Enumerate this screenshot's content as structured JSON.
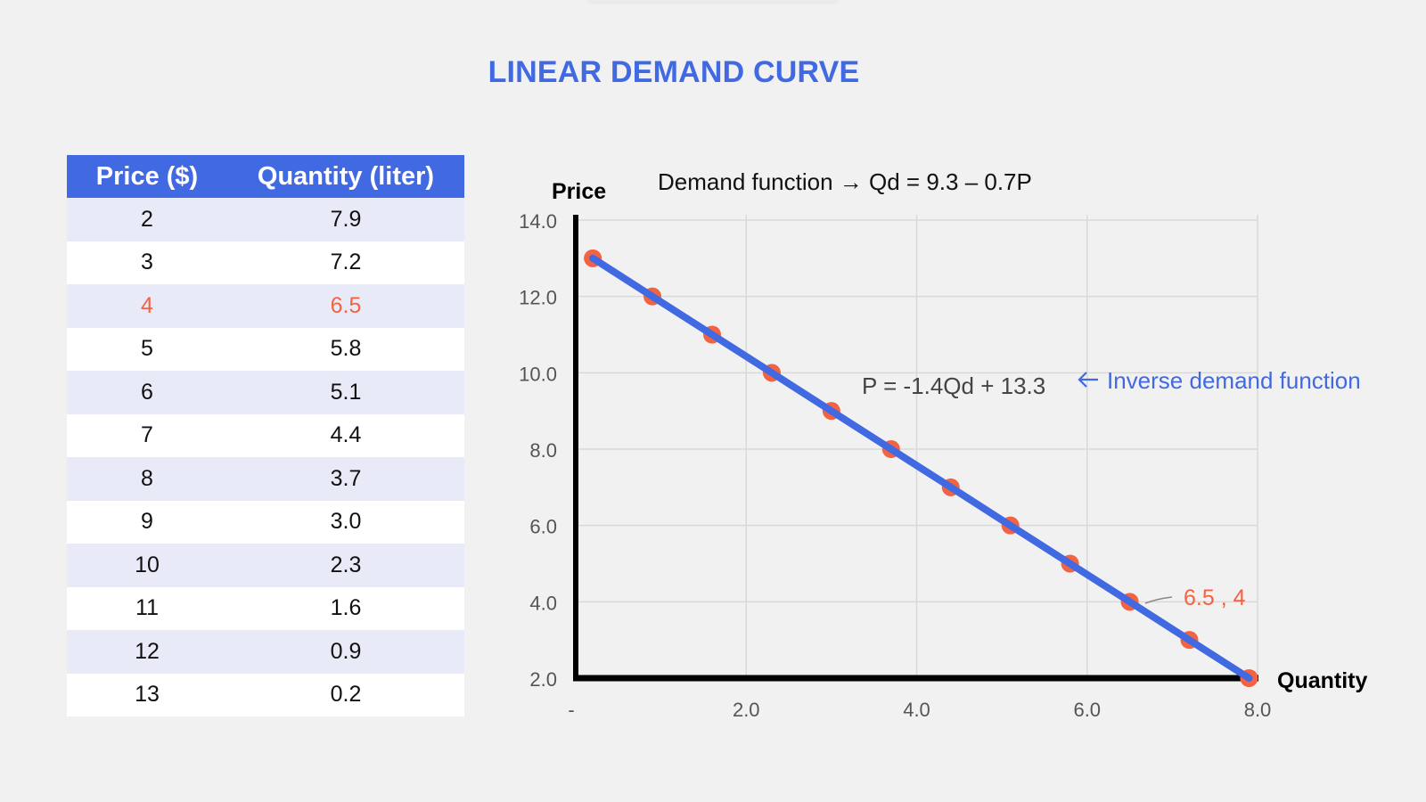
{
  "page": {
    "title": "LINEAR DEMAND CURVE"
  },
  "table": {
    "headers": [
      "Price ($)",
      "Quantity (liter)"
    ],
    "highlight_row_index": 2,
    "rows": [
      {
        "price": "2",
        "quantity": "7.9"
      },
      {
        "price": "3",
        "quantity": "7.2"
      },
      {
        "price": "4",
        "quantity": "6.5"
      },
      {
        "price": "5",
        "quantity": "5.8"
      },
      {
        "price": "6",
        "quantity": "5.1"
      },
      {
        "price": "7",
        "quantity": "4.4"
      },
      {
        "price": "8",
        "quantity": "3.7"
      },
      {
        "price": "9",
        "quantity": "3.0"
      },
      {
        "price": "10",
        "quantity": "2.3"
      },
      {
        "price": "11",
        "quantity": "1.6"
      },
      {
        "price": "12",
        "quantity": "0.9"
      },
      {
        "price": "13",
        "quantity": "0.2"
      }
    ]
  },
  "colors": {
    "accent_blue": "#4169e1",
    "point_orange": "#f36241",
    "row_tint": "#e8ebf7",
    "axis": "#000000",
    "grid": "#d9d9d9",
    "tick_text": "#555555"
  },
  "chart_data": {
    "type": "line",
    "title": "Demand function → Qd = 9.3 – 0.7P",
    "xlabel": "Quantity",
    "ylabel": "Price",
    "x_ticks": [
      "-",
      "2.0",
      "4.0",
      "6.0",
      "8.0"
    ],
    "y_ticks": [
      "14.0",
      "12.0",
      "10.0",
      "8.0",
      "6.0",
      "4.0",
      "2.0"
    ],
    "xlim": [
      0,
      8
    ],
    "ylim": [
      2,
      14
    ],
    "grid": true,
    "series": [
      {
        "name": "Demand",
        "x": [
          0.2,
          0.9,
          1.6,
          2.3,
          3.0,
          3.7,
          4.4,
          5.1,
          5.8,
          6.5,
          7.2,
          7.9
        ],
        "y": [
          13,
          12,
          11,
          10,
          9,
          8,
          7,
          6,
          5,
          4,
          3,
          2
        ]
      }
    ],
    "annotations": [
      {
        "text": "P = -1.4Qd + 13.3",
        "label": "Inverse demand function",
        "arrow": "←"
      },
      {
        "text": "6.5 , 4",
        "point": [
          6.5,
          4
        ]
      }
    ]
  }
}
